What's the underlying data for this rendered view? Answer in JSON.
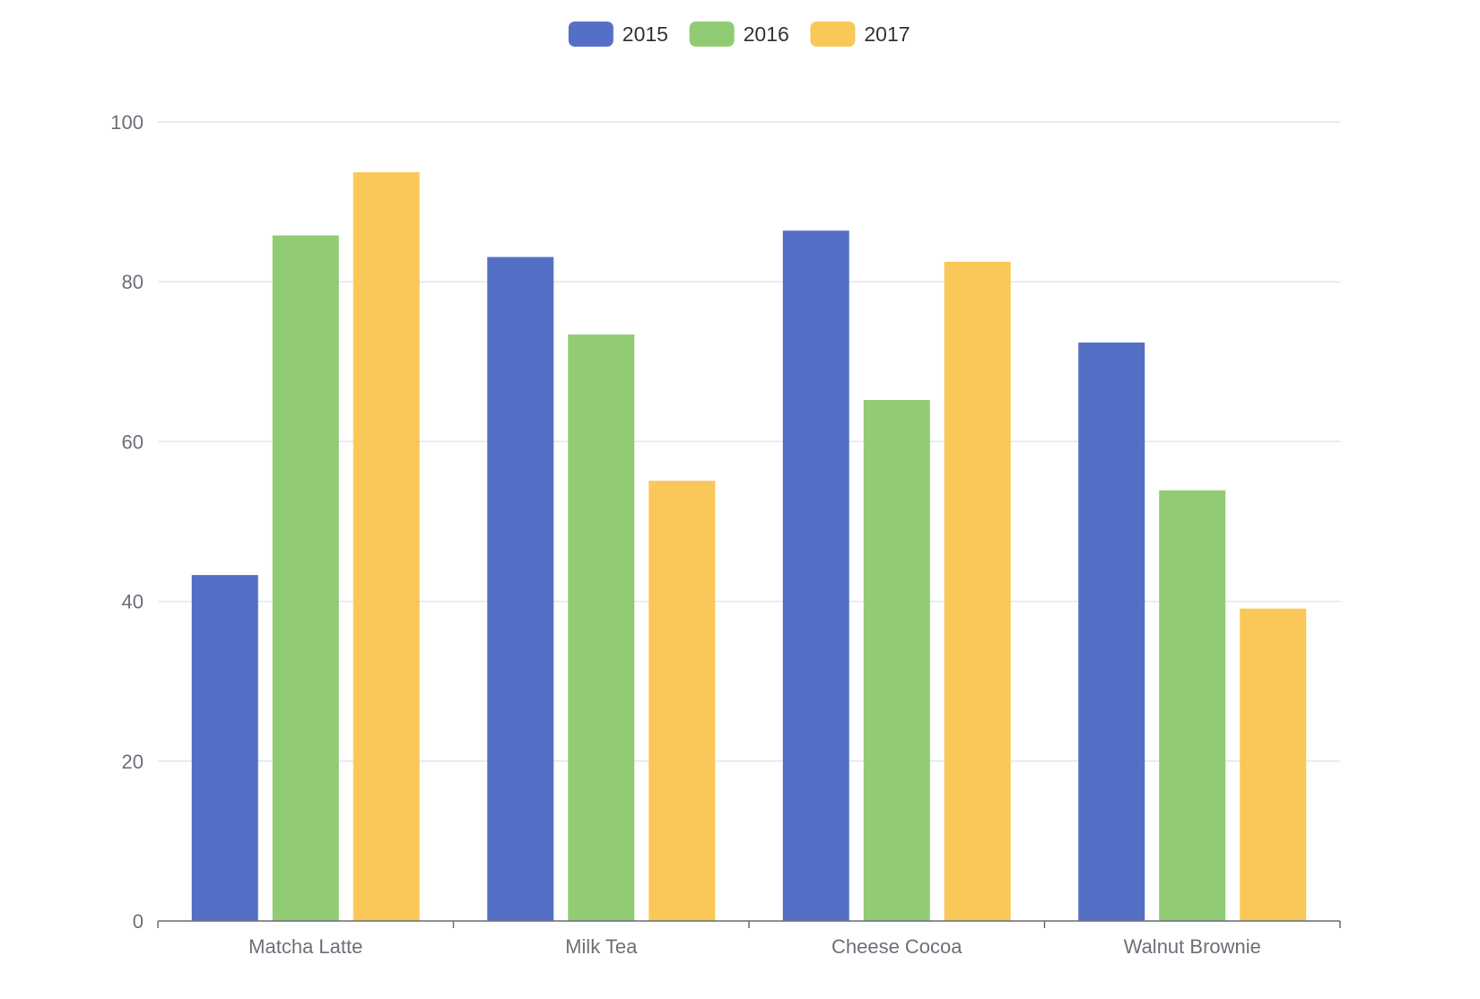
{
  "chart_data": {
    "type": "bar",
    "title": "",
    "xlabel": "",
    "ylabel": "",
    "categories": [
      "Matcha Latte",
      "Milk Tea",
      "Cheese Cocoa",
      "Walnut Brownie"
    ],
    "series": [
      {
        "name": "2015",
        "color": "#5470c6",
        "values": [
          43.3,
          83.1,
          86.4,
          72.4
        ]
      },
      {
        "name": "2016",
        "color": "#91cc75",
        "values": [
          85.8,
          73.4,
          65.2,
          53.9
        ]
      },
      {
        "name": "2017",
        "color": "#fac858",
        "values": [
          93.7,
          55.1,
          82.5,
          39.1
        ]
      }
    ],
    "ylim": [
      0,
      100
    ],
    "yticks": [
      0,
      20,
      40,
      60,
      80,
      100
    ],
    "grid": true,
    "legend_position": "top-center",
    "colors": {
      "axis_label": "#6e7079",
      "axis_line": "#6e7079",
      "grid_line": "#e0e6f1",
      "legend_text": "#333333"
    }
  }
}
